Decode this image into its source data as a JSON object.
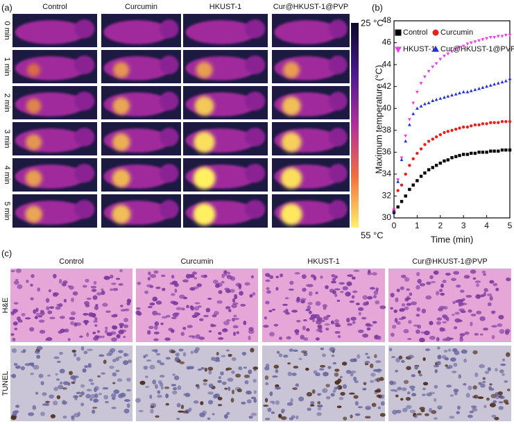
{
  "panel_labels": [
    "(a)",
    "(b)",
    "(c)"
  ],
  "panel_a": {
    "columns": [
      "Control",
      "Curcumin",
      "HKUST-1",
      "Cur@HKUST-1@PVP"
    ],
    "rows": [
      "0 min",
      "1 min",
      "2 min",
      "3 min",
      "4 min",
      "5 min"
    ],
    "colorbar": {
      "top": "25 °C",
      "bottom": "55 °C"
    }
  },
  "chart_data": {
    "type": "scatter",
    "xlabel": "Time (min)",
    "ylabel": "Maximum temperature (°C)",
    "x": [
      0,
      0.17,
      0.33,
      0.5,
      0.67,
      0.83,
      1,
      1.17,
      1.33,
      1.5,
      1.67,
      1.83,
      2,
      2.17,
      2.33,
      2.5,
      2.67,
      2.83,
      3,
      3.17,
      3.33,
      3.5,
      3.67,
      3.83,
      4,
      4.17,
      4.33,
      4.5,
      4.67,
      4.83,
      5
    ],
    "xlim": [
      0,
      5
    ],
    "xticks": [
      0,
      1,
      2,
      3,
      4,
      5
    ],
    "ylim": [
      30,
      48
    ],
    "yticks": [
      30,
      32,
      34,
      36,
      38,
      40,
      42,
      44,
      46,
      48
    ],
    "legend": "top-left",
    "series": [
      {
        "name": "Control",
        "color": "#000000",
        "marker": "square",
        "values": [
          30.5,
          31,
          31.5,
          32,
          32.6,
          33,
          33.4,
          33.8,
          34.1,
          34.4,
          34.6,
          34.8,
          35,
          35.2,
          35.3,
          35.5,
          35.6,
          35.7,
          35.8,
          35.8,
          35.9,
          35.9,
          36,
          36,
          36,
          36.1,
          36.1,
          36.1,
          36.2,
          36.2,
          36.2
        ]
      },
      {
        "name": "Curcumin",
        "color": "#e8201c",
        "marker": "circle",
        "values": [
          30.7,
          32.5,
          33,
          34,
          34.8,
          35.4,
          35.9,
          36.3,
          36.7,
          37,
          37.2,
          37.4,
          37.6,
          37.8,
          37.9,
          38,
          38.1,
          38.2,
          38.3,
          38.3,
          38.4,
          38.5,
          38.5,
          38.6,
          38.6,
          38.7,
          38.7,
          38.7,
          38.8,
          38.8,
          38.8
        ]
      },
      {
        "name": "HKUST-1",
        "color": "#ee3de8",
        "marker": "triangle-down",
        "values": [
          30.8,
          33.5,
          35.5,
          37.5,
          39,
          40.5,
          41.5,
          42.3,
          42.9,
          43.4,
          43.8,
          44.1,
          44.5,
          44.8,
          45,
          45.2,
          45.4,
          45.6,
          45.7,
          45.9,
          46,
          46.1,
          46.2,
          46.3,
          46.4,
          46.5,
          46.5,
          46.6,
          46.6,
          46.7,
          46.7
        ]
      },
      {
        "name": "Cur@HKUST-1@PVP",
        "color": "#2230d6",
        "marker": "triangle-up",
        "values": [
          30.6,
          33.3,
          35.3,
          37,
          38.5,
          39.5,
          40,
          40.2,
          40.4,
          40.5,
          40.7,
          40.8,
          40.9,
          41,
          41.1,
          41.2,
          41.3,
          41.4,
          41.5,
          41.5,
          41.6,
          41.7,
          41.8,
          41.9,
          42,
          42.1,
          42.2,
          42.3,
          42.4,
          42.5,
          42.7
        ]
      }
    ]
  },
  "panel_c": {
    "columns": [
      "Control",
      "Curcumin",
      "HKUST-1",
      "Cur@HKUST-1@PVP"
    ],
    "rows": [
      "H&E",
      "TUNEL"
    ]
  }
}
